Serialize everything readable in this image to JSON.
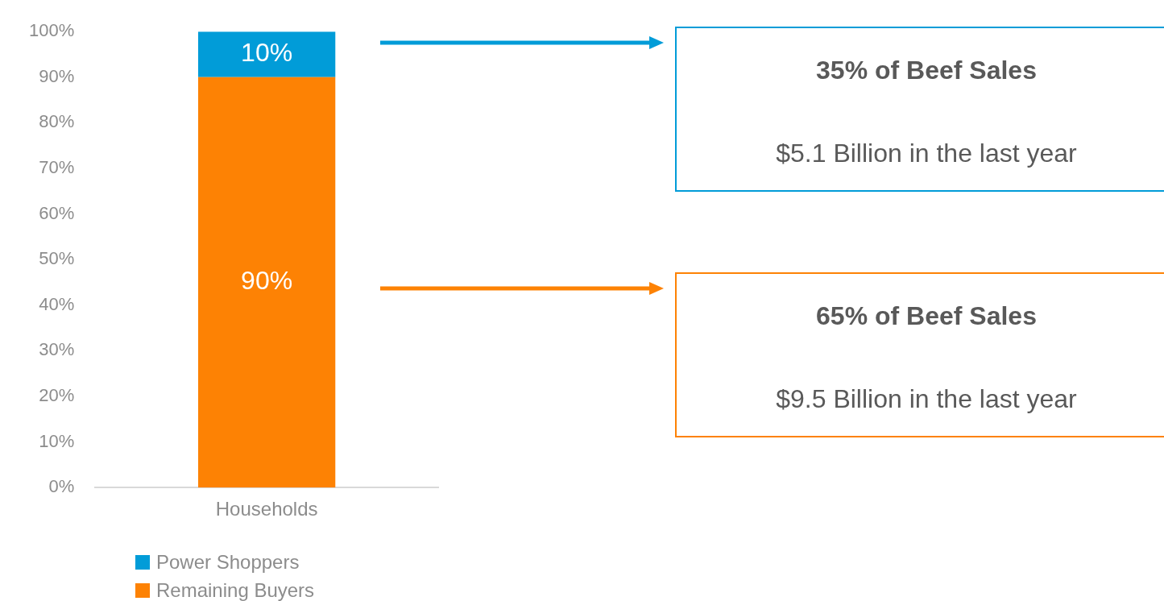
{
  "chart_data": {
    "type": "bar",
    "stacked": true,
    "categories": [
      "Households"
    ],
    "series": [
      {
        "name": "Remaining Buyers",
        "color": "#fd8204",
        "values": [
          90
        ]
      },
      {
        "name": "Power Shoppers",
        "color": "#019cd8",
        "values": [
          10
        ]
      }
    ],
    "ylim": [
      0,
      100
    ],
    "yticks": [
      {
        "value": 0,
        "label": "0%"
      },
      {
        "value": 10,
        "label": "10%"
      },
      {
        "value": 20,
        "label": "20%"
      },
      {
        "value": 30,
        "label": "30%"
      },
      {
        "value": 40,
        "label": "40%"
      },
      {
        "value": 50,
        "label": "50%"
      },
      {
        "value": 60,
        "label": "60%"
      },
      {
        "value": 70,
        "label": "70%"
      },
      {
        "value": 80,
        "label": "80%"
      },
      {
        "value": 90,
        "label": "90%"
      },
      {
        "value": 100,
        "label": "100%"
      }
    ],
    "value_labels": [
      "90%",
      "10%"
    ],
    "grid": false,
    "legend": "bottom",
    "annotations": [
      "35% of Beef Sales",
      "$5.1 Billion in the last year",
      "65% of Beef Sales",
      "$9.5 Billion in the last year"
    ]
  }
}
